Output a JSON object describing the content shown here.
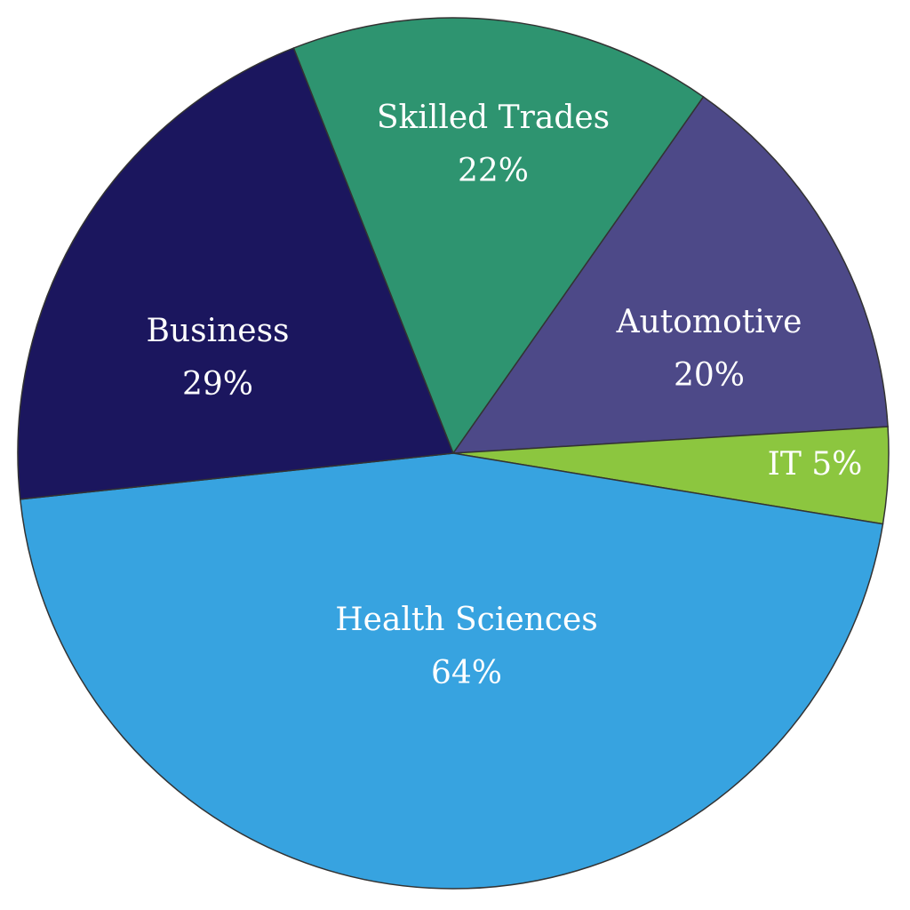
{
  "chart_data": {
    "type": "pie",
    "categories": [
      "Skilled Trades",
      "Automotive",
      "IT",
      "Health Sciences",
      "Business"
    ],
    "values": [
      22,
      20,
      5,
      64,
      29
    ],
    "value_labels": [
      "22%",
      "20%",
      "5%",
      "64%",
      "29%"
    ],
    "colors": [
      "#2e9470",
      "#4d4988",
      "#8cc63f",
      "#37a3e0",
      "#1b165e"
    ]
  }
}
